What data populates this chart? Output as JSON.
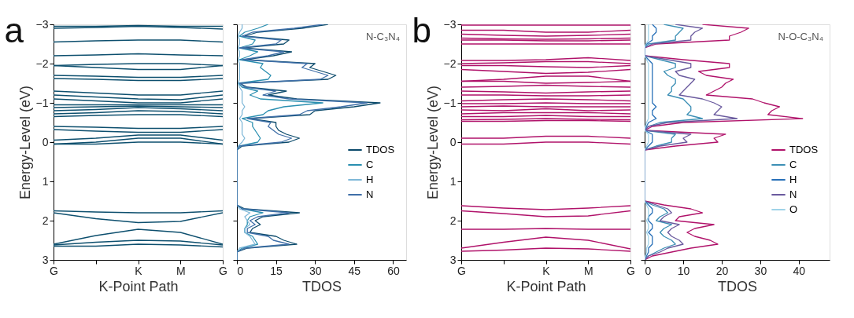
{
  "chart_data": [
    {
      "type": "line",
      "xlabel": "K-Point Path",
      "ylabel": "Energy-Level (eV)",
      "annotations": [
        "a"
      ],
      "categories": [
        "G",
        null,
        "K",
        "M",
        "G"
      ],
      "ylim": [
        3,
        -3
      ],
      "yticks": [
        -3,
        -2,
        -1,
        0,
        1,
        2,
        3
      ],
      "series": [
        {
          "color": "#0d4f6e",
          "values": [
            -2.95,
            -2.95,
            -2.97,
            -2.95,
            -2.95
          ]
        },
        {
          "color": "#0d4f6e",
          "values": [
            -2.9,
            -2.92,
            -2.95,
            -2.92,
            -2.88
          ]
        },
        {
          "color": "#0d4f6e",
          "values": [
            -2.55,
            -2.58,
            -2.6,
            -2.6,
            -2.55
          ]
        },
        {
          "color": "#0d4f6e",
          "values": [
            -2.2,
            -2.22,
            -2.25,
            -2.22,
            -2.2
          ]
        },
        {
          "color": "#0d4f6e",
          "values": [
            -1.95,
            -1.9,
            -1.85,
            -1.85,
            -1.95
          ]
        },
        {
          "color": "#0d4f6e",
          "values": [
            -1.95,
            -1.98,
            -2.0,
            -2.0,
            -1.95
          ]
        },
        {
          "color": "#0d4f6e",
          "values": [
            -1.7,
            -1.68,
            -1.65,
            -1.65,
            -1.7
          ]
        },
        {
          "color": "#0d4f6e",
          "values": [
            -1.62,
            -1.6,
            -1.57,
            -1.57,
            -1.62
          ]
        },
        {
          "color": "#0d4f6e",
          "values": [
            -1.3,
            -1.25,
            -1.2,
            -1.2,
            -1.3
          ]
        },
        {
          "color": "#0d4f6e",
          "values": [
            -1.2,
            -1.15,
            -1.1,
            -1.08,
            -1.2
          ]
        },
        {
          "color": "#0d4f6e",
          "values": [
            -1.1,
            -1.05,
            -1.0,
            -1.0,
            -1.1
          ]
        },
        {
          "color": "#0d4f6e",
          "values": [
            -0.95,
            -0.95,
            -0.95,
            -0.95,
            -0.95
          ]
        },
        {
          "color": "#0d4f6e",
          "values": [
            -0.88,
            -0.9,
            -0.92,
            -0.9,
            -0.88
          ]
        },
        {
          "color": "#0d4f6e",
          "values": [
            -0.8,
            -0.83,
            -0.88,
            -0.85,
            -0.8
          ]
        },
        {
          "color": "#0d4f6e",
          "values": [
            -0.72,
            -0.75,
            -0.8,
            -0.78,
            -0.72
          ]
        },
        {
          "color": "#0d4f6e",
          "values": [
            -0.65,
            -0.68,
            -0.7,
            -0.7,
            -0.65
          ]
        },
        {
          "color": "#0d4f6e",
          "values": [
            -0.4,
            -0.38,
            -0.35,
            -0.35,
            -0.4
          ]
        },
        {
          "color": "#0d4f6e",
          "values": [
            -0.32,
            -0.28,
            -0.25,
            -0.25,
            -0.32
          ]
        },
        {
          "color": "#0d4f6e",
          "values": [
            -0.05,
            -0.1,
            -0.18,
            -0.18,
            -0.05
          ]
        },
        {
          "color": "#0d4f6e",
          "values": [
            0.05,
            0.0,
            -0.1,
            -0.1,
            0.05
          ]
        },
        {
          "color": "#0d4f6e",
          "values": [
            0.05,
            0.05,
            0.0,
            0.0,
            0.05
          ]
        },
        {
          "color": "#0d4f6e",
          "values": [
            1.75,
            1.78,
            1.8,
            1.8,
            1.75
          ]
        },
        {
          "color": "#0d4f6e",
          "values": [
            1.8,
            1.95,
            2.05,
            2.02,
            1.8
          ]
        },
        {
          "color": "#0d4f6e",
          "values": [
            2.6,
            2.38,
            2.22,
            2.3,
            2.6
          ]
        },
        {
          "color": "#0d4f6e",
          "values": [
            2.62,
            2.55,
            2.5,
            2.52,
            2.62
          ]
        },
        {
          "color": "#0d4f6e",
          "values": [
            2.65,
            2.65,
            2.6,
            2.62,
            2.67
          ]
        }
      ]
    },
    {
      "type": "line",
      "orientation": "horizontal",
      "xlabel": "TDOS",
      "annotations": [
        "N-C₃N₄"
      ],
      "tick_labels": "x",
      "legend": "right",
      "x": [
        -3.0,
        -2.9,
        -2.8,
        -2.7,
        -2.6,
        -2.5,
        -2.4,
        -2.3,
        -2.2,
        -2.1,
        -2.0,
        -1.9,
        -1.8,
        -1.7,
        -1.6,
        -1.5,
        -1.4,
        -1.3,
        -1.2,
        -1.1,
        -1.0,
        -0.9,
        -0.8,
        -0.7,
        -0.6,
        -0.5,
        -0.4,
        -0.3,
        -0.2,
        -0.1,
        0.0,
        0.1,
        0.2,
        0.3,
        0.4,
        0.5,
        0.6,
        0.7,
        0.8,
        0.9,
        1.0,
        1.1,
        1.2,
        1.3,
        1.4,
        1.5,
        1.6,
        1.7,
        1.8,
        1.9,
        2.0,
        2.1,
        2.2,
        2.3,
        2.4,
        2.5,
        2.6,
        2.7,
        2.8,
        2.9,
        3.0
      ],
      "xlim": [
        0,
        65
      ],
      "xticks": [
        0,
        15,
        30,
        45,
        60
      ],
      "ylim": [
        3,
        -3
      ],
      "yticks": [
        -3,
        -2,
        -1,
        0,
        1,
        2,
        3
      ],
      "series": [
        {
          "name": "TDOS",
          "color": "#0b4a6b",
          "values": [
            35,
            25,
            8,
            3,
            20,
            18,
            2,
            21,
            14,
            3,
            30,
            28,
            33,
            38,
            35,
            1,
            4,
            19,
            12,
            23,
            55,
            45,
            30,
            28,
            5,
            15,
            15,
            16,
            19,
            24,
            20,
            2,
            0,
            0,
            0,
            0,
            0,
            0,
            0,
            0,
            0,
            0,
            0,
            0,
            0,
            0,
            0,
            3,
            24,
            10,
            7,
            9,
            6,
            5,
            15,
            18,
            23,
            4,
            0,
            0,
            0
          ]
        },
        {
          "name": "C",
          "color": "#2a8fb0",
          "values": [
            12,
            8,
            3,
            1,
            7,
            6,
            1,
            8,
            5,
            1,
            10,
            9,
            11,
            13,
            12,
            0.5,
            2,
            8,
            5,
            9,
            33,
            18,
            12,
            10,
            2,
            6,
            6,
            7,
            8,
            9,
            8,
            1,
            0,
            0,
            0,
            0,
            0,
            0,
            0,
            0,
            0,
            0,
            0,
            0,
            0,
            0,
            0,
            2,
            10,
            5,
            4,
            4,
            3,
            3,
            6,
            7,
            8,
            2,
            0,
            0,
            0
          ]
        },
        {
          "name": "H",
          "color": "#7fb8d8",
          "values": [
            2,
            2,
            1,
            0.5,
            1,
            1,
            0.5,
            1,
            1,
            0.5,
            1,
            1,
            1,
            1,
            1,
            0.5,
            1,
            2,
            2,
            2,
            2,
            3,
            2,
            2,
            1,
            2,
            2,
            2,
            2,
            3,
            2,
            0.5,
            0,
            0,
            0,
            0,
            0,
            0,
            0,
            0,
            0,
            0,
            0,
            0,
            0,
            0,
            0,
            1,
            5,
            3,
            4,
            5,
            3,
            3,
            5,
            6,
            7,
            1,
            0,
            0,
            0
          ]
        },
        {
          "name": "N",
          "color": "#3f6fa8",
          "values": [
            33,
            22,
            6,
            2,
            17,
            15,
            1,
            18,
            12,
            2,
            27,
            25,
            30,
            35,
            32,
            1,
            3,
            15,
            10,
            20,
            50,
            40,
            27,
            24,
            4,
            13,
            12,
            14,
            16,
            21,
            17,
            1,
            0,
            0,
            0,
            0,
            0,
            0,
            0,
            0,
            0,
            0,
            0,
            0,
            0,
            0,
            0,
            2,
            20,
            8,
            5,
            7,
            4,
            4,
            12,
            14,
            20,
            3,
            0,
            0,
            0
          ]
        }
      ]
    },
    {
      "type": "line",
      "xlabel": "K-Point Path",
      "ylabel": "Energy-Level (eV)",
      "annotations": [
        "b"
      ],
      "categories": [
        "G",
        null,
        "K",
        "M",
        "G"
      ],
      "ylim": [
        3,
        -3
      ],
      "yticks": [
        -3,
        -2,
        -1,
        0,
        1,
        2,
        3
      ],
      "series": [
        {
          "color": "#b0126a",
          "values": [
            -2.98,
            -2.98,
            -2.98,
            -2.98,
            -2.98
          ]
        },
        {
          "color": "#b0126a",
          "values": [
            -2.85,
            -2.85,
            -2.8,
            -2.8,
            -2.85
          ]
        },
        {
          "color": "#b0126a",
          "values": [
            -2.75,
            -2.72,
            -2.7,
            -2.72,
            -2.75
          ]
        },
        {
          "color": "#b0126a",
          "values": [
            -2.65,
            -2.63,
            -2.62,
            -2.63,
            -2.65
          ]
        },
        {
          "color": "#b0126a",
          "values": [
            -2.6,
            -2.6,
            -2.58,
            -2.58,
            -2.6
          ]
        },
        {
          "color": "#b0126a",
          "values": [
            -2.5,
            -2.5,
            -2.5,
            -2.5,
            -2.5
          ]
        },
        {
          "color": "#b0126a",
          "values": [
            -2.08,
            -2.08,
            -2.1,
            -2.15,
            -2.08
          ]
        },
        {
          "color": "#b0126a",
          "values": [
            -2.0,
            -2.02,
            -2.05,
            -2.05,
            -2.0
          ]
        },
        {
          "color": "#b0126a",
          "values": [
            -1.95,
            -1.95,
            -1.92,
            -1.9,
            -1.95
          ]
        },
        {
          "color": "#b0126a",
          "values": [
            -1.85,
            -1.8,
            -1.75,
            -1.78,
            -1.85
          ]
        },
        {
          "color": "#b0126a",
          "values": [
            -1.55,
            -1.6,
            -1.68,
            -1.68,
            -1.55
          ]
        },
        {
          "color": "#b0126a",
          "values": [
            -1.55,
            -1.55,
            -1.5,
            -1.52,
            -1.55
          ]
        },
        {
          "color": "#b0126a",
          "values": [
            -1.4,
            -1.42,
            -1.45,
            -1.42,
            -1.4
          ]
        },
        {
          "color": "#b0126a",
          "values": [
            -1.3,
            -1.28,
            -1.25,
            -1.28,
            -1.3
          ]
        },
        {
          "color": "#b0126a",
          "values": [
            -1.2,
            -1.2,
            -1.18,
            -1.18,
            -1.2
          ]
        },
        {
          "color": "#b0126a",
          "values": [
            -1.05,
            -1.08,
            -1.1,
            -1.08,
            -1.05
          ]
        },
        {
          "color": "#b0126a",
          "values": [
            -0.98,
            -0.98,
            -1.0,
            -0.98,
            -0.98
          ]
        },
        {
          "color": "#b0126a",
          "values": [
            -0.9,
            -0.92,
            -0.9,
            -0.9,
            -0.9
          ]
        },
        {
          "color": "#b0126a",
          "values": [
            -0.82,
            -0.8,
            -0.85,
            -0.8,
            -0.82
          ]
        },
        {
          "color": "#b0126a",
          "values": [
            -0.72,
            -0.75,
            -0.75,
            -0.75,
            -0.72
          ]
        },
        {
          "color": "#b0126a",
          "values": [
            -0.65,
            -0.65,
            -0.68,
            -0.65,
            -0.65
          ]
        },
        {
          "color": "#b0126a",
          "values": [
            -0.57,
            -0.58,
            -0.6,
            -0.58,
            -0.57
          ]
        },
        {
          "color": "#b0126a",
          "values": [
            -0.53,
            -0.53,
            -0.55,
            -0.55,
            -0.53
          ]
        },
        {
          "color": "#b0126a",
          "values": [
            -0.1,
            -0.1,
            -0.15,
            -0.15,
            -0.1
          ]
        },
        {
          "color": "#b0126a",
          "values": [
            0.05,
            0.05,
            0.0,
            0.0,
            0.05
          ]
        },
        {
          "color": "#b0126a",
          "values": [
            1.62,
            1.68,
            1.72,
            1.68,
            1.62
          ]
        },
        {
          "color": "#b0126a",
          "values": [
            1.75,
            1.82,
            1.9,
            1.88,
            1.75
          ]
        },
        {
          "color": "#b0126a",
          "values": [
            2.22,
            2.22,
            2.2,
            2.22,
            2.22
          ]
        },
        {
          "color": "#b0126a",
          "values": [
            2.7,
            2.55,
            2.42,
            2.5,
            2.72
          ]
        },
        {
          "color": "#b0126a",
          "values": [
            2.78,
            2.75,
            2.7,
            2.72,
            2.78
          ]
        }
      ]
    },
    {
      "type": "line",
      "orientation": "horizontal",
      "xlabel": "TDOS",
      "annotations": [
        "N-O-C₃N₄"
      ],
      "tick_labels": "x",
      "legend": "right",
      "x": [
        -3.0,
        -2.9,
        -2.8,
        -2.7,
        -2.6,
        -2.5,
        -2.4,
        -2.3,
        -2.2,
        -2.1,
        -2.0,
        -1.9,
        -1.8,
        -1.7,
        -1.6,
        -1.5,
        -1.4,
        -1.3,
        -1.2,
        -1.1,
        -1.0,
        -0.9,
        -0.8,
        -0.7,
        -0.6,
        -0.5,
        -0.4,
        -0.3,
        -0.2,
        -0.1,
        0.0,
        0.1,
        0.2,
        0.3,
        0.4,
        0.5,
        0.6,
        0.7,
        0.8,
        0.9,
        1.0,
        1.1,
        1.2,
        1.3,
        1.4,
        1.5,
        1.6,
        1.7,
        1.8,
        1.9,
        2.0,
        2.1,
        2.2,
        2.3,
        2.4,
        2.5,
        2.6,
        2.7,
        2.8,
        2.9,
        3.0
      ],
      "xlim": [
        0,
        48
      ],
      "xticks": [
        0,
        10,
        20,
        30,
        40
      ],
      "ylim": [
        3,
        -3
      ],
      "yticks": [
        -3,
        -2,
        -1,
        0,
        1,
        2,
        3
      ],
      "series": [
        {
          "name": "TDOS",
          "color": "#b0126a",
          "values": [
            15,
            27,
            25,
            22,
            22,
            3,
            0,
            0,
            0,
            10,
            22,
            22,
            14,
            16,
            23,
            21,
            20,
            18,
            16,
            28,
            31,
            35,
            33,
            32,
            41,
            10,
            2,
            0,
            21,
            18,
            19,
            8,
            0,
            0,
            0,
            0,
            0,
            0,
            0,
            0,
            0,
            0,
            0,
            0,
            0,
            0,
            5,
            12,
            15,
            9,
            8,
            18,
            13,
            11,
            13,
            17,
            19,
            12,
            7,
            2,
            0
          ]
        },
        {
          "name": "C",
          "color": "#3c8fb5",
          "values": [
            5,
            10,
            9,
            8,
            8,
            1,
            0,
            0,
            0,
            4,
            8,
            8,
            5,
            6,
            8,
            8,
            7,
            7,
            6,
            10,
            11,
            12,
            12,
            11,
            15,
            4,
            1,
            0,
            8,
            7,
            7,
            3,
            0,
            0,
            0,
            0,
            0,
            0,
            0,
            0,
            0,
            0,
            0,
            0,
            0,
            0,
            2,
            5,
            6,
            4,
            3,
            7,
            5,
            4,
            5,
            7,
            8,
            5,
            3,
            1,
            0
          ]
        },
        {
          "name": "H",
          "color": "#2870b8",
          "values": [
            2,
            3,
            3,
            2,
            2,
            0.5,
            0,
            0,
            0,
            1,
            2,
            2,
            2,
            2,
            2,
            2,
            2,
            2,
            2,
            2,
            2,
            3,
            2,
            2,
            3,
            1,
            0.5,
            0,
            2,
            2,
            2,
            1,
            0,
            0,
            0,
            0,
            0,
            0,
            0,
            0,
            0,
            0,
            0,
            0,
            0,
            0,
            1,
            2,
            2,
            1,
            1,
            2,
            2,
            1,
            2,
            2,
            2,
            1,
            1,
            0.5,
            0
          ]
        },
        {
          "name": "N",
          "color": "#6a5a9e",
          "values": [
            8,
            15,
            13,
            12,
            12,
            2,
            0,
            0,
            0,
            6,
            12,
            12,
            8,
            9,
            13,
            12,
            11,
            10,
            9,
            15,
            18,
            20,
            19,
            18,
            24,
            6,
            1,
            0,
            12,
            10,
            11,
            4,
            0,
            0,
            0,
            0,
            0,
            0,
            0,
            0,
            0,
            0,
            0,
            0,
            0,
            0,
            3,
            6,
            7,
            5,
            4,
            9,
            7,
            6,
            7,
            9,
            10,
            6,
            4,
            1,
            0
          ]
        },
        {
          "name": "O",
          "color": "#9fd3e8",
          "values": [
            1,
            1,
            1,
            1,
            1,
            0.3,
            0,
            0,
            0,
            0.5,
            1,
            1,
            1,
            1,
            1,
            1,
            1,
            1,
            1,
            1,
            1,
            1,
            1,
            1,
            1,
            0.5,
            0.2,
            0,
            1,
            1,
            1,
            0.5,
            0,
            0,
            0,
            0,
            0,
            0,
            0,
            0,
            0,
            0,
            0,
            0,
            0,
            0,
            0.5,
            1,
            1,
            1,
            0.5,
            1,
            1,
            0.5,
            1,
            1,
            1,
            0.5,
            0.5,
            0.2,
            0
          ]
        }
      ]
    }
  ]
}
